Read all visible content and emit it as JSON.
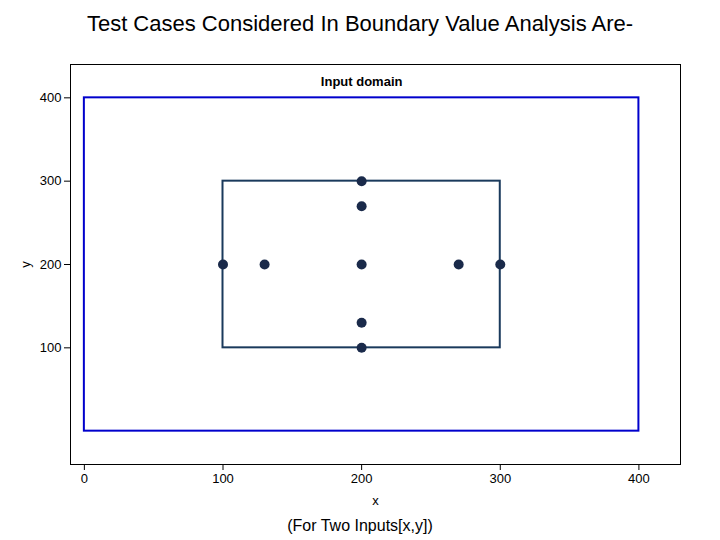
{
  "chart_data": {
    "type": "scatter",
    "title": "Test Cases Considered In Boundary Value Analysis Are-",
    "subtitle": "(For Two Inputs[x,y])",
    "x_label": "x",
    "y_label": "y",
    "x": [
      200,
      200,
      200,
      200,
      200,
      100,
      130,
      300,
      270
    ],
    "y": [
      300,
      270,
      200,
      130,
      100,
      200,
      200,
      200,
      200
    ],
    "color": "#1a2a4a",
    "rectangles": [
      {
        "x1": 0,
        "y1": 0,
        "x2": 400,
        "y2": 400,
        "color": "#0000cc"
      },
      {
        "x1": 100,
        "y1": 100,
        "x2": 300,
        "y2": 300,
        "color": "#1a3a5c"
      }
    ],
    "annotations": [
      {
        "text": "Input domain",
        "x": 200,
        "y": 425
      }
    ],
    "xlim": [
      -10,
      430
    ],
    "ylim": [
      -40,
      440
    ],
    "xticks": [
      0,
      100,
      200,
      300,
      400
    ],
    "yticks": [
      100,
      200,
      300,
      400
    ],
    "grid": false
  }
}
